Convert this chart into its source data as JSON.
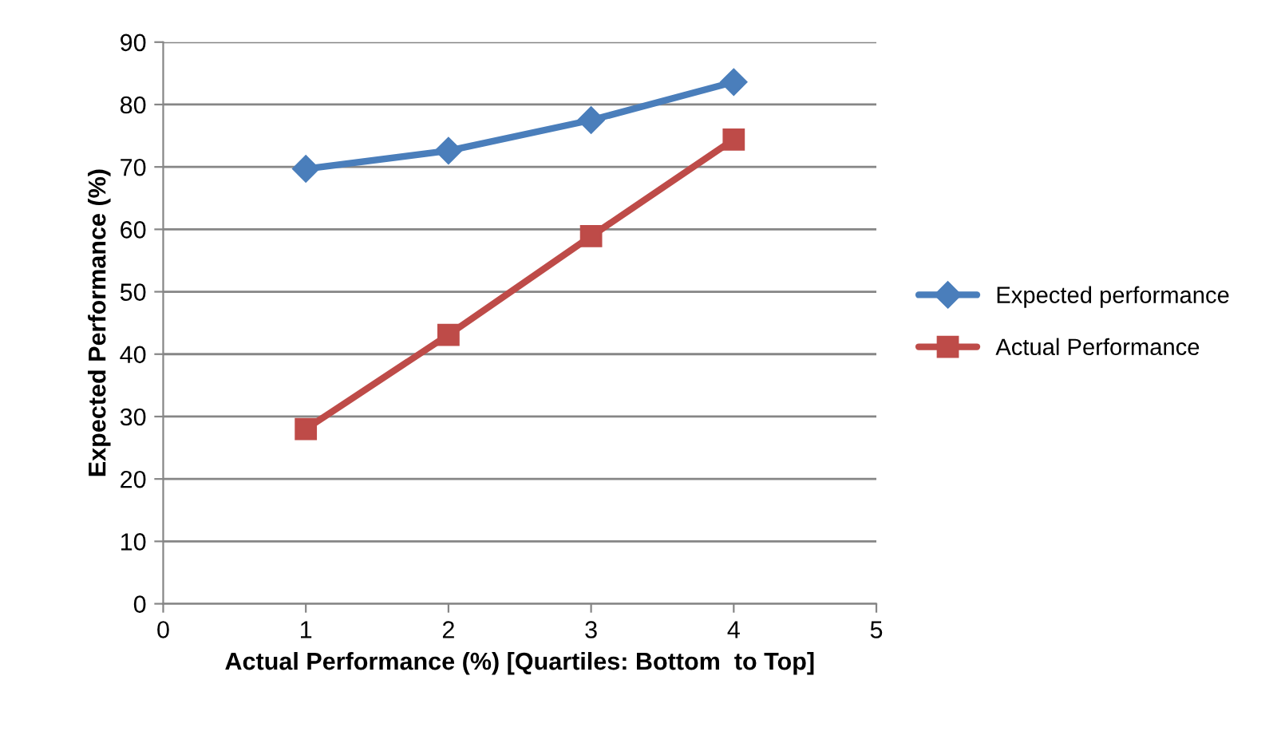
{
  "chart_data": {
    "type": "line",
    "xlabel": "Actual Performance (%) [Quartiles: Bottom  to Top]",
    "ylabel": "Expected Performance (%)",
    "x": [
      1,
      2,
      3,
      4
    ],
    "series": [
      {
        "name": "Expected performance",
        "color": "#4a7ebb",
        "values": [
          69.7,
          72.6,
          77.5,
          83.6
        ],
        "marker": "diamond"
      },
      {
        "name": "Actual Performance",
        "color": "#be4b48",
        "values": [
          28.0,
          43.1,
          58.9,
          74.4
        ],
        "marker": "square"
      }
    ],
    "xlim": [
      0,
      5
    ],
    "xticks": [
      0,
      1,
      2,
      3,
      4,
      5
    ],
    "ylim": [
      0,
      90
    ],
    "yticks": [
      0,
      10,
      20,
      30,
      40,
      50,
      60,
      70,
      80,
      90
    ],
    "grid": "y",
    "legend": "right",
    "line_style": "solid"
  }
}
